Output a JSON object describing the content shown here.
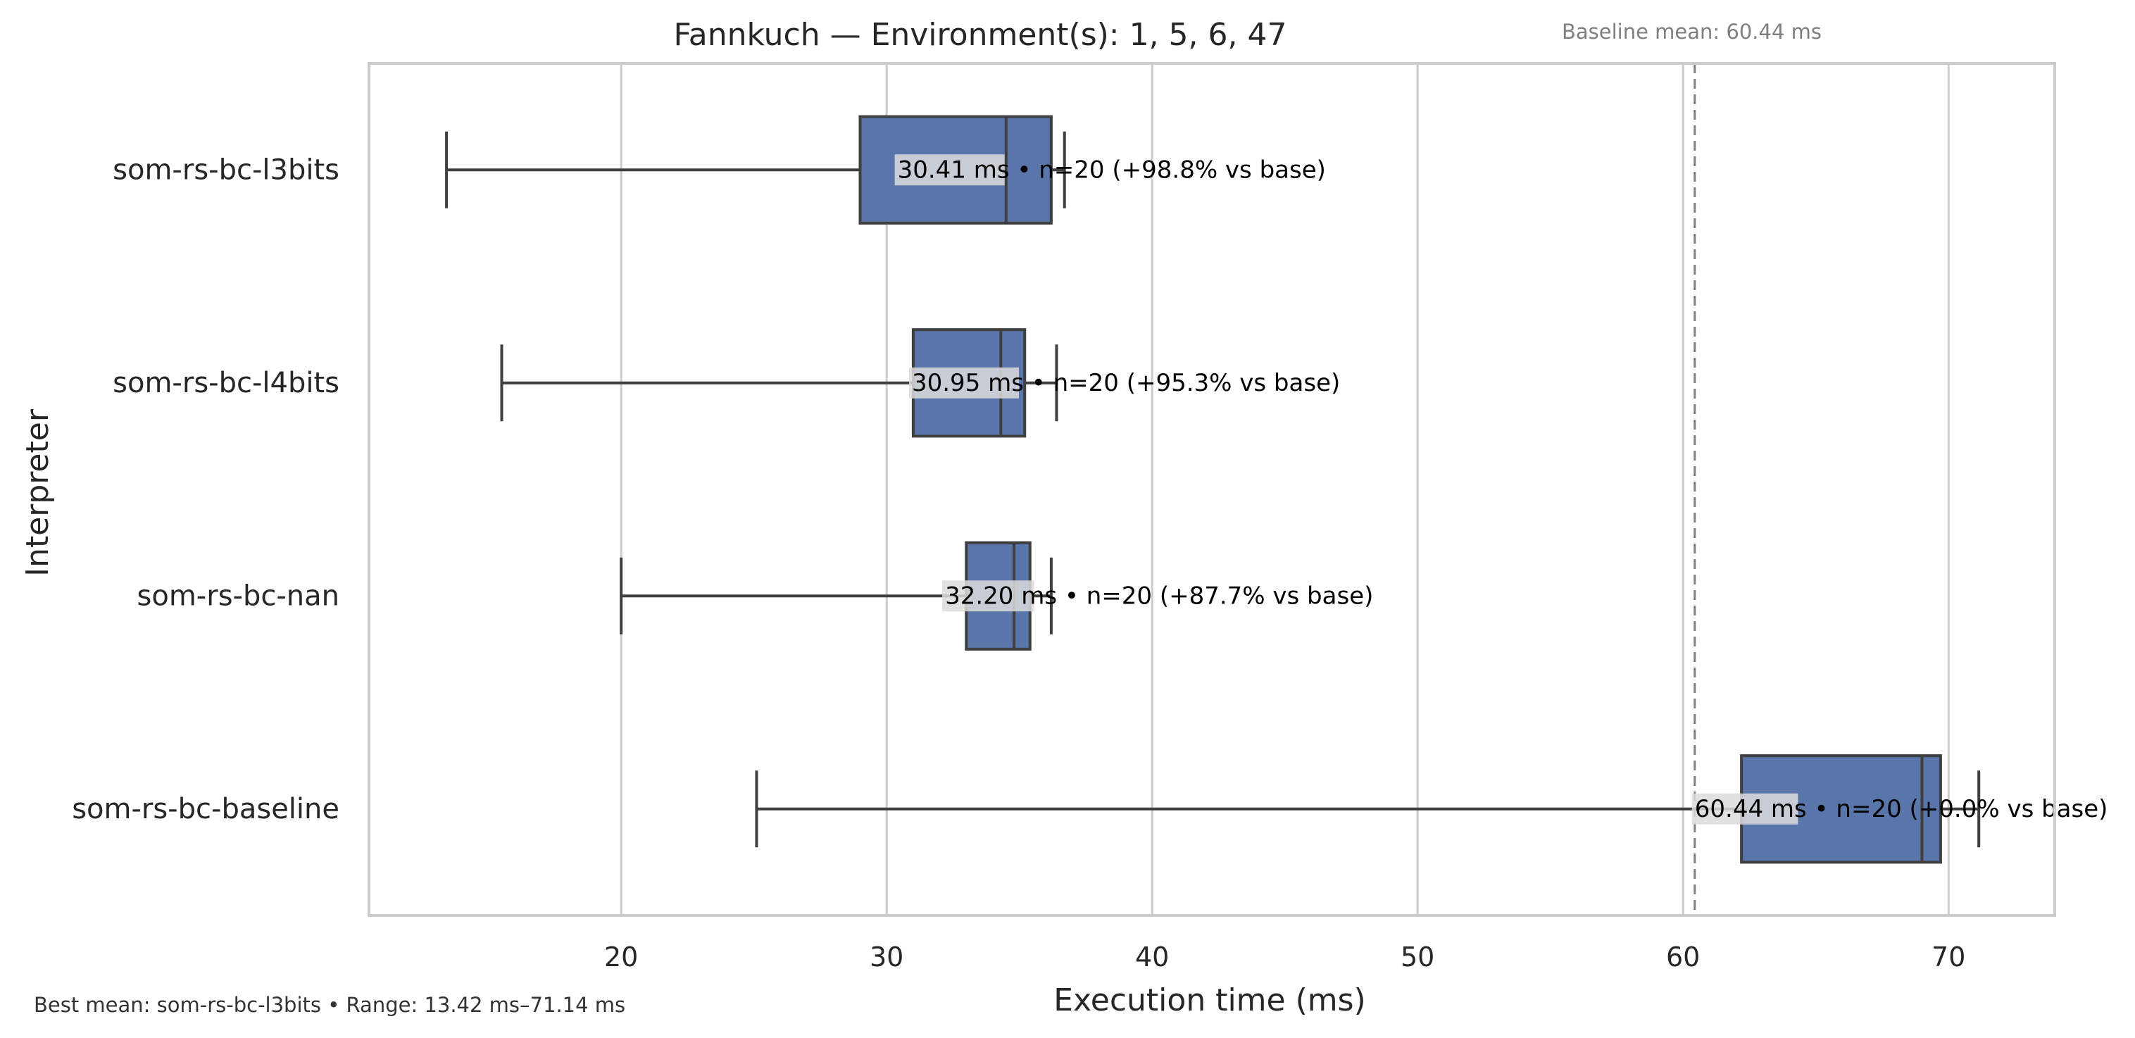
{
  "chart_data": {
    "type": "boxplot",
    "orientation": "horizontal",
    "title": "Fannkuch — Environment(s): 1, 5, 6, 47",
    "baseline_note": "Baseline mean: 60.44 ms",
    "xlabel": "Execution time (ms)",
    "ylabel": "Interpreter",
    "xlim": [
      10.5,
      74
    ],
    "xticks": [
      20,
      30,
      40,
      50,
      60,
      70
    ],
    "grid": "vertical",
    "baseline_line": 60.44,
    "colors": {
      "box": "#5975a9",
      "line": "#3f3f3f",
      "grid": "#cccccc",
      "baseline": "#808080",
      "label_bg": "#dcdcdc"
    },
    "series": [
      {
        "name": "som-rs-bc-l3bits",
        "whisker_low": 13.42,
        "q1": 29.0,
        "median": 34.5,
        "q3": 36.2,
        "whisker_high": 36.7,
        "mean": 30.41,
        "label": "30.41 ms • n=20 (+98.8% vs base)"
      },
      {
        "name": "som-rs-bc-l4bits",
        "whisker_low": 15.5,
        "q1": 31.0,
        "median": 34.3,
        "q3": 35.2,
        "whisker_high": 36.4,
        "mean": 30.95,
        "label": "30.95 ms • n=20 (+95.3% vs base)"
      },
      {
        "name": "som-rs-bc-nan",
        "whisker_low": 20.0,
        "q1": 33.0,
        "median": 34.8,
        "q3": 35.4,
        "whisker_high": 36.2,
        "mean": 32.2,
        "label": "32.20 ms • n=20 (+87.7% vs base)"
      },
      {
        "name": "som-rs-bc-baseline",
        "whisker_low": 25.1,
        "q1": 62.2,
        "median": 69.0,
        "q3": 69.7,
        "whisker_high": 71.14,
        "mean": 60.44,
        "label": "60.44 ms • n=20 (+0.0% vs base)"
      }
    ],
    "footnote": "Best mean: som-rs-bc-l3bits • Range: 13.42 ms–71.14 ms"
  }
}
